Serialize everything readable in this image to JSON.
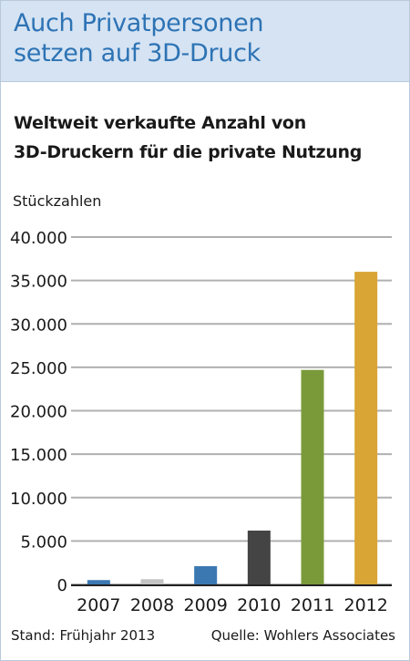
{
  "header": {
    "headline_line1": "Auch Privatpersonen",
    "headline_line2": "setzen auf 3D-Druck"
  },
  "chart_data": {
    "type": "bar",
    "title_line1": "Weltweit verkaufte Anzahl von",
    "title_line2": "3D-Druckern für die private Nutzung",
    "ylabel": "Stückzahlen",
    "xlabel": "",
    "categories": [
      "2007",
      "2008",
      "2009",
      "2010",
      "2011",
      "2012"
    ],
    "values": [
      500,
      600,
      2100,
      6200,
      24700,
      36000
    ],
    "colors": [
      "#3b78b2",
      "#c4c4c4",
      "#3b78b2",
      "#444444",
      "#7a9a3a",
      "#d9a535"
    ],
    "ylim": [
      0,
      40000
    ],
    "yticks": [
      0,
      5000,
      10000,
      15000,
      20000,
      25000,
      30000,
      35000,
      40000
    ],
    "ytick_labels": [
      "0",
      "5.000",
      "10.000",
      "15.000",
      "20.000",
      "25.000",
      "30.000",
      "35.000",
      "40.000"
    ],
    "grid": true,
    "gridline_color": "#b0b0b0"
  },
  "footer": {
    "stand": "Stand: Frühjahr 2013",
    "quelle": "Quelle: Wohlers Associates"
  }
}
